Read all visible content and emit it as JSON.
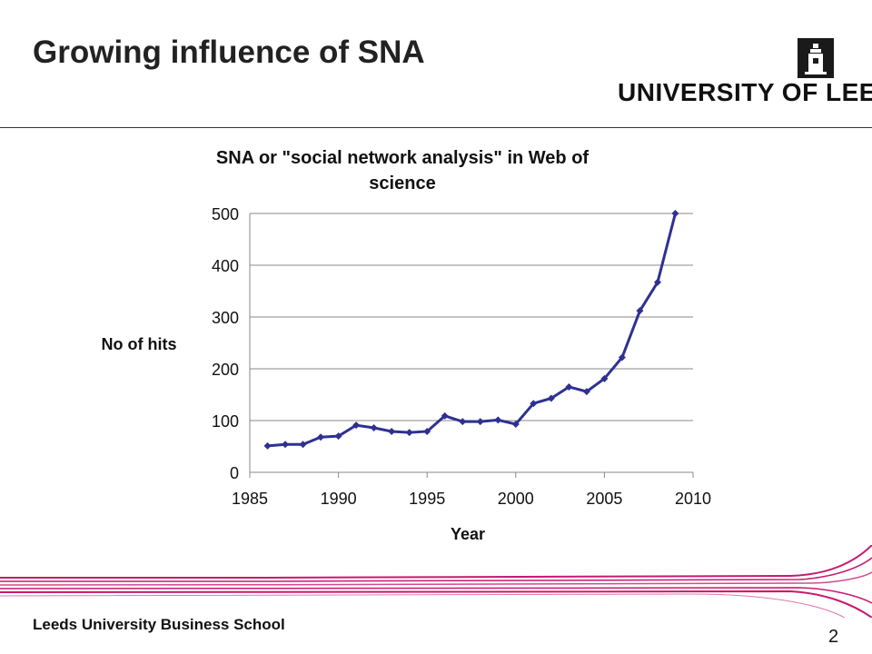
{
  "slide": {
    "title": "Growing influence of SNA",
    "logo_text": "UNIVERSITY OF LEEDS",
    "footer": "Leeds University Business School",
    "page_number": "2",
    "accent_color": "#c8186f"
  },
  "chart_data": {
    "type": "line",
    "title": "SNA or \"social network analysis\" in Web of science",
    "title_lines": [
      "SNA or \"social network analysis\" in Web of",
      "science"
    ],
    "xlabel": "Year",
    "ylabel": "No of hits",
    "xlim": [
      1985,
      2010
    ],
    "ylim": [
      0,
      500
    ],
    "xticks": [
      1985,
      1990,
      1995,
      2000,
      2005,
      2010
    ],
    "yticks": [
      0,
      100,
      200,
      300,
      400,
      500
    ],
    "grid": "horizontal",
    "series_color": "#2e3192",
    "series": [
      {
        "x": [
          1986,
          1987,
          1988,
          1989,
          1990,
          1991,
          1992,
          1993,
          1994,
          1995,
          1996,
          1997,
          1998,
          1999,
          2000,
          2001,
          2002,
          2003,
          2004,
          2005,
          2006,
          2007,
          2008,
          2009
        ],
        "values": [
          51,
          54,
          54,
          68,
          70,
          91,
          86,
          79,
          77,
          79,
          109,
          98,
          98,
          101,
          93,
          133,
          143,
          165,
          156,
          181,
          222,
          312,
          367,
          500
        ]
      }
    ]
  }
}
